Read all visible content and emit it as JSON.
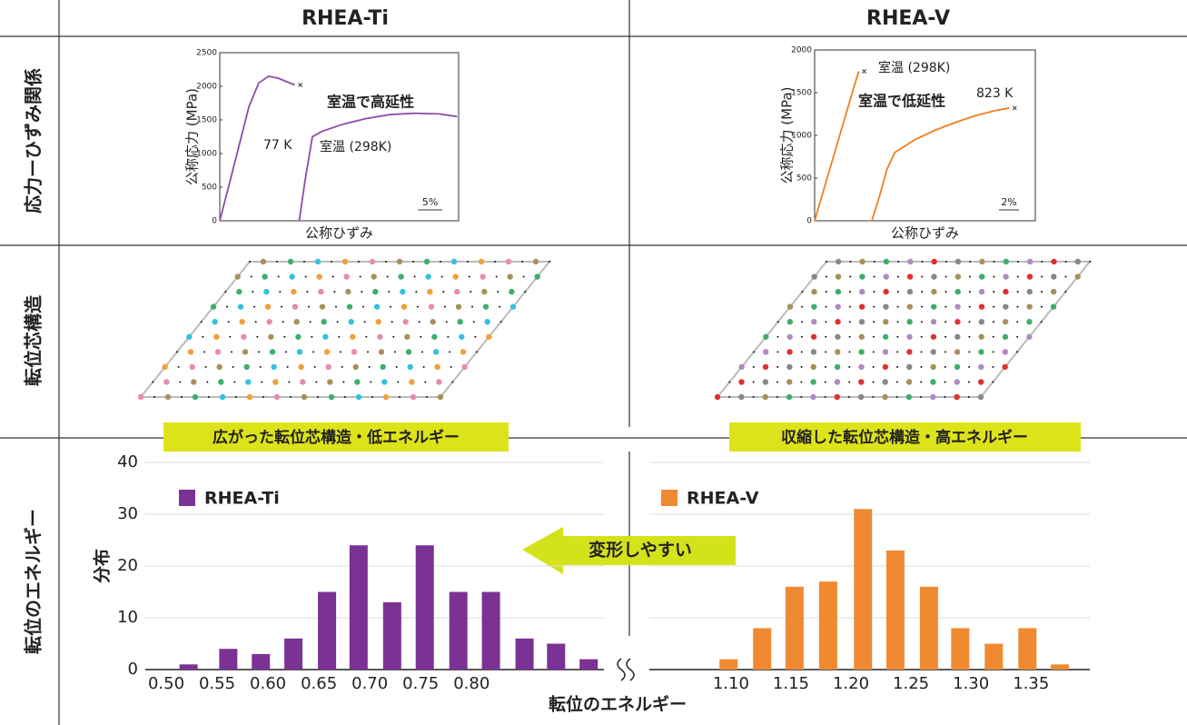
{
  "header": {
    "columns": [
      "RHEA-Ti",
      "RHEA-V"
    ]
  },
  "rows": [
    "応力ーひずみ関係",
    "転位芯構造",
    "転位のエネルギー"
  ],
  "banners": [
    "広がった転位芯構造・低エネルギー",
    "収縮した転位芯構造・高エネルギー"
  ],
  "arrow_label": "変形しやすい",
  "chart_data": [
    {
      "type": "line",
      "ylabel": "公称応力 (MPa)",
      "xlabel": "公称ひずみ",
      "ylim": [
        0,
        2500
      ],
      "yticks": [
        0,
        500,
        1000,
        1500,
        2000,
        2500
      ],
      "xlim": [
        0,
        49
      ],
      "scale_bar": {
        "value": 5,
        "label": "5%"
      },
      "annotations": [
        "室温で高延性"
      ],
      "annotation_color": "#e8212b",
      "series": [
        {
          "name": "77 K",
          "color": "#8e4aa8",
          "end_marker": true,
          "x": [
            0,
            2,
            4,
            6,
            8,
            10,
            12,
            15.4
          ],
          "values": [
            0,
            560,
            1130,
            1700,
            2050,
            2150,
            2120,
            2020
          ]
        },
        {
          "name": "室温 (298K)",
          "color": "#8e4aa8",
          "end_marker": false,
          "x": [
            16.3,
            17.5,
            19,
            21,
            25,
            30,
            35,
            40,
            45,
            48.7
          ],
          "values": [
            0,
            600,
            1250,
            1330,
            1430,
            1520,
            1580,
            1600,
            1590,
            1550
          ]
        }
      ]
    },
    {
      "type": "line",
      "ylabel": "公称応力 (MPa)",
      "xlabel": "公称ひずみ",
      "ylim": [
        0,
        2000
      ],
      "yticks": [
        0,
        500,
        1000,
        1500,
        2000
      ],
      "xlim": [
        0,
        22
      ],
      "scale_bar": {
        "value": 2,
        "label": "2%"
      },
      "annotations": [
        "室温で低延性"
      ],
      "annotation_color": "#e8212b",
      "series": [
        {
          "name": "室温 (298K)",
          "color": "#f07f1e",
          "end_marker": true,
          "x": [
            0,
            1,
            2,
            3,
            4,
            4.4
          ],
          "values": [
            0,
            400,
            800,
            1200,
            1600,
            1750
          ]
        },
        {
          "name": "823 K",
          "color": "#f07f1e",
          "end_marker": true,
          "x": [
            5.7,
            6.5,
            7.2,
            8,
            10,
            12,
            14,
            16,
            18,
            19.4
          ],
          "values": [
            0,
            300,
            600,
            800,
            950,
            1060,
            1150,
            1230,
            1290,
            1320
          ]
        }
      ]
    },
    {
      "type": "histogram",
      "ylabel": "分布",
      "xlabel": "転位のエネルギー",
      "ylim": [
        0,
        40
      ],
      "yticks": [
        0,
        10,
        20,
        30,
        40
      ],
      "grid": true,
      "series": [
        {
          "name": "RHEA-Ti",
          "color": "#7b3294",
          "xlim": [
            0.4795,
            0.93
          ],
          "xticks": [
            {
              "value": 0.5,
              "label": "0.50"
            },
            {
              "value": 0.55,
              "label": "0.55"
            },
            {
              "value": 0.6,
              "label": "0.60"
            },
            {
              "value": 0.65,
              "label": "0.65"
            },
            {
              "value": 0.7,
              "label": "0.70"
            },
            {
              "value": 0.75,
              "label": "0.75"
            },
            {
              "value": 0.8,
              "label": "0.80"
            }
          ],
          "x": [
            0.522,
            0.561,
            0.593,
            0.625,
            0.658,
            0.689,
            0.722,
            0.754,
            0.787,
            0.819,
            0.852,
            0.883,
            0.915
          ],
          "values": [
            1,
            4,
            3,
            6,
            15,
            24,
            13,
            24,
            15,
            15,
            6,
            5,
            2
          ]
        },
        {
          "name": "RHEA-V",
          "color": "#ef8a33",
          "xlim": [
            1.032,
            1.399
          ],
          "xticks": [
            {
              "value": 1.1,
              "label": "1.10"
            },
            {
              "value": 1.15,
              "label": "1.15"
            },
            {
              "value": 1.2,
              "label": "1.20"
            },
            {
              "value": 1.25,
              "label": "1.25"
            },
            {
              "value": 1.3,
              "label": "1.30"
            },
            {
              "value": 1.35,
              "label": "1.35"
            }
          ],
          "x": [
            1.098,
            1.126,
            1.153,
            1.181,
            1.21,
            1.237,
            1.265,
            1.291,
            1.319,
            1.347,
            1.374
          ],
          "values": [
            2,
            8,
            16,
            17,
            31,
            23,
            16,
            8,
            5,
            8,
            1
          ]
        }
      ]
    }
  ]
}
